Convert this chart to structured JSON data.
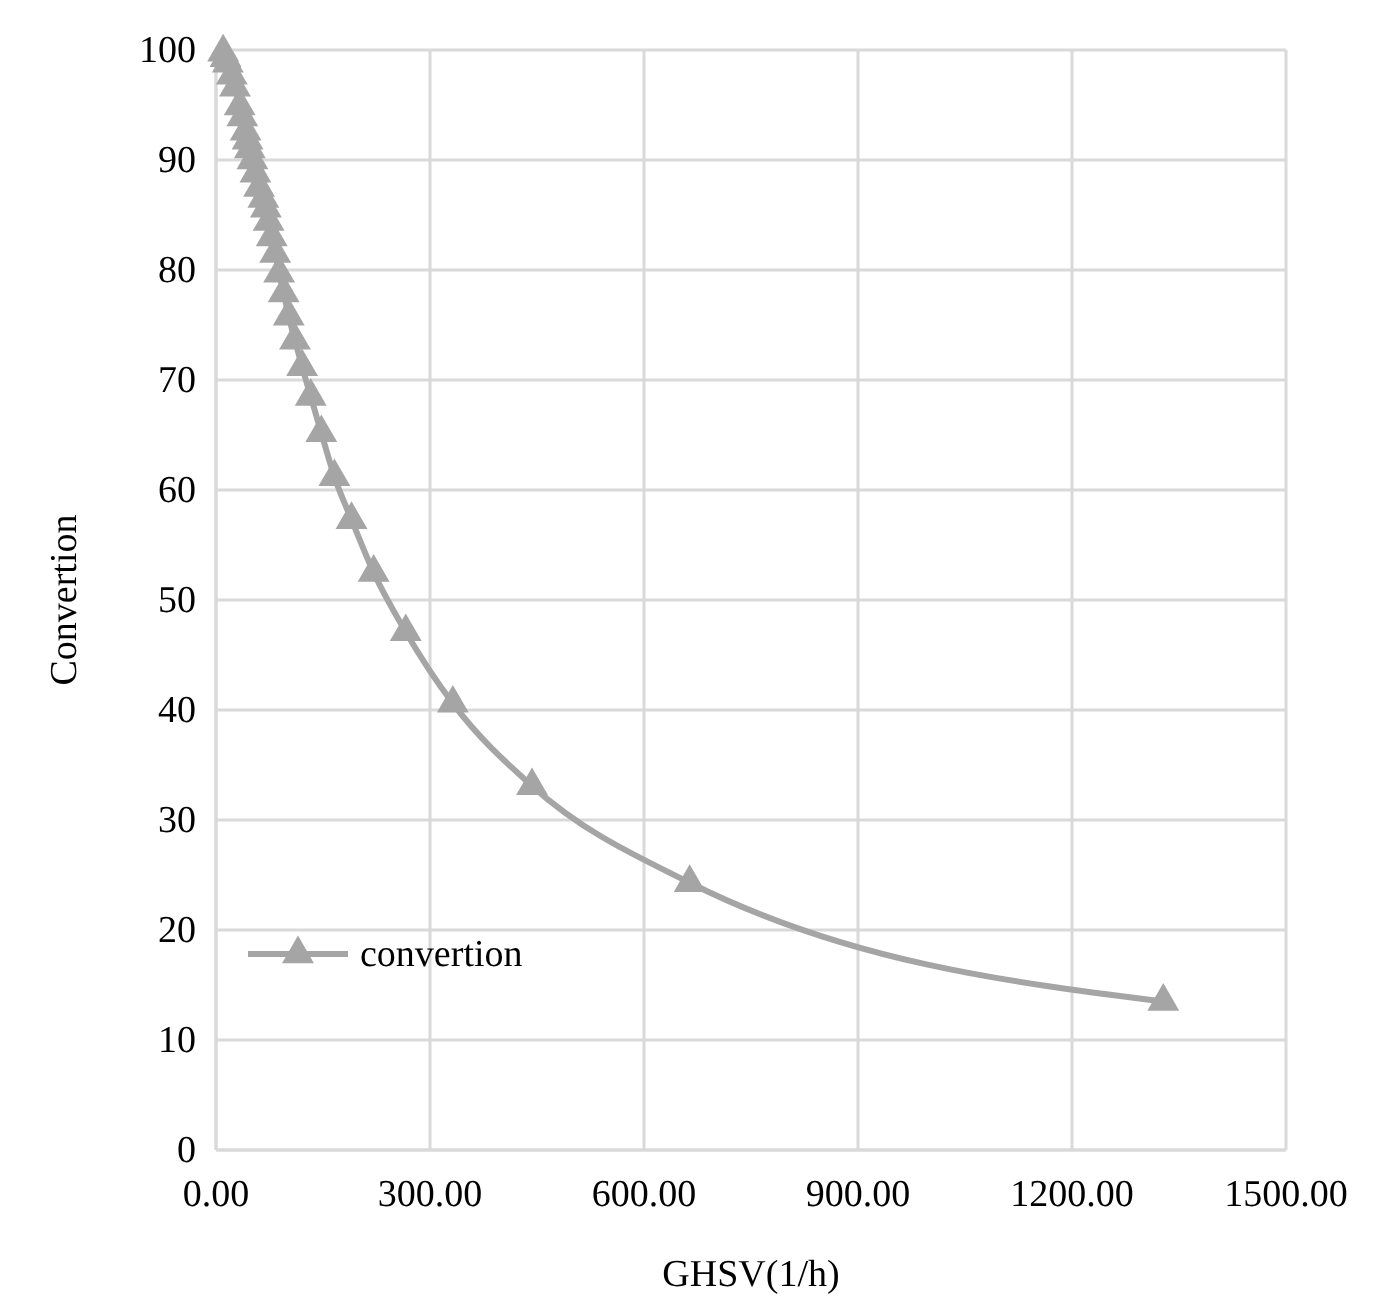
{
  "chart_data": {
    "type": "line",
    "xlabel": "GHSV(1/h)",
    "ylabel": "Convertion",
    "xlim": [
      0,
      1500
    ],
    "xticks": [
      {
        "value": 0,
        "label": "0.00"
      },
      {
        "value": 300,
        "label": "300.00"
      },
      {
        "value": 600,
        "label": "600.00"
      },
      {
        "value": 900,
        "label": "900.00"
      },
      {
        "value": 1200,
        "label": "1200.00"
      },
      {
        "value": 1500,
        "label": "1500.00"
      }
    ],
    "ylim": [
      0,
      100
    ],
    "yticks": [
      0,
      10,
      20,
      30,
      40,
      50,
      60,
      70,
      80,
      90,
      100
    ],
    "grid": true,
    "legend": "bottom left",
    "marker": "triangle",
    "line_style": "solid",
    "series": [
      {
        "name": "convertion",
        "color": "#a5a5a5",
        "x": [
          10,
          13.3,
          16.6,
          22.1,
          26.6,
          33.2,
          36.9,
          41.5,
          44.3,
          47.4,
          51.1,
          55.3,
          60.4,
          66.4,
          69.9,
          73.8,
          78.1,
          83,
          88.5,
          94.9,
          102,
          110.7,
          120.7,
          132.8,
          147.6,
          166,
          190,
          221,
          266,
          332,
          443,
          664,
          1328
        ],
        "values": [
          99.8,
          99.3,
          98.8,
          97.7,
          96.6,
          94.9,
          93.9,
          92.6,
          91.8,
          91,
          90,
          88.8,
          87.5,
          86.5,
          85.6,
          84.4,
          83,
          81.5,
          79.7,
          77.9,
          75.8,
          73.6,
          71.2,
          68.5,
          65.2,
          61.2,
          57.3,
          52.5,
          47.1,
          40.6,
          33.1,
          24.3,
          13.5
        ]
      }
    ]
  }
}
